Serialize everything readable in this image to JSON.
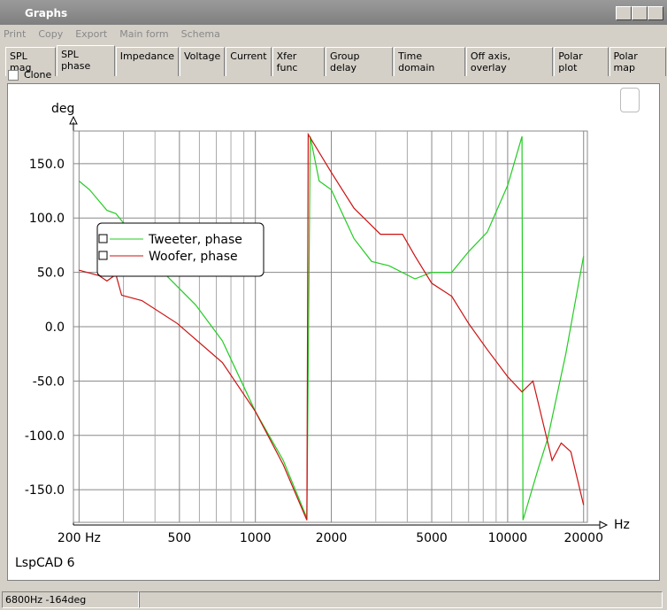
{
  "window": {
    "title": "Graphs"
  },
  "menu": [
    "Print",
    "Copy",
    "Export",
    "Main form",
    "Schema"
  ],
  "tabs": {
    "items": [
      "SPL mag",
      "SPL phase",
      "Impedance",
      "Voltage",
      "Current",
      "Xfer func",
      "Group delay",
      "Time domain",
      "Off axis, overlay",
      "Polar plot",
      "Polar map"
    ],
    "active": 1
  },
  "clone_label": "Clone",
  "watermark": "LspCAD 6",
  "status": "6800Hz -164deg",
  "chart_data": {
    "type": "line",
    "y_label": "deg",
    "x_label": "Hz",
    "xscale": "log",
    "xlim": [
      190,
      20700
    ],
    "ylim": [
      -180,
      180
    ],
    "xticks": [
      {
        "value": 200,
        "label": "200 Hz"
      },
      500,
      1000,
      2000,
      5000,
      10000,
      20000
    ],
    "x_minor_ticks": [
      300,
      400,
      600,
      700,
      800,
      900,
      3000,
      4000,
      6000,
      7000,
      8000,
      9000
    ],
    "yticks": [
      {
        "value": 150,
        "label": "150.0"
      },
      {
        "value": 100,
        "label": "100.0"
      },
      {
        "value": 50,
        "label": "50.0"
      },
      {
        "value": 0,
        "label": "0.0"
      },
      {
        "value": -50,
        "label": "-50.0"
      },
      {
        "value": -100,
        "label": "-100.0"
      },
      {
        "value": -150,
        "label": "-150.0"
      }
    ],
    "grid": true,
    "legend": "upper left",
    "series": [
      {
        "name": "Tweeter, phase",
        "color": "#22cc22",
        "x": [
          200,
          220,
          258,
          280,
          440,
          580,
          740,
          1000,
          1290,
          1600,
          1650,
          1790,
          2000,
          2460,
          2890,
          3390,
          4290,
          5000,
          6000,
          7000,
          8300,
          10000,
          11400,
          11500,
          13200,
          14400,
          17000,
          20000
        ],
        "values": [
          134,
          126,
          107,
          104,
          48,
          20,
          -13,
          -78,
          -123,
          -176,
          175,
          134,
          126,
          81,
          60,
          56,
          44,
          50,
          50,
          69,
          87,
          130,
          175,
          -178,
          -131,
          -103,
          -25,
          65
        ]
      },
      {
        "name": "Woofer, phase",
        "color": "#cc1111",
        "x": [
          200,
          240,
          258,
          280,
          295,
          355,
          490,
          740,
          1000,
          1290,
          1600,
          1620,
          2000,
          2460,
          3130,
          3830,
          4290,
          5000,
          6000,
          7000,
          8300,
          10000,
          11400,
          12600,
          15000,
          16300,
          17800,
          20000
        ],
        "values": [
          52,
          47,
          42,
          48,
          29,
          24,
          3,
          -33,
          -78,
          -127,
          -178,
          177,
          142,
          109,
          85,
          85,
          65,
          40,
          28,
          3,
          -21,
          -46,
          -60,
          -50,
          -123,
          -107,
          -115,
          -164
        ]
      }
    ]
  }
}
